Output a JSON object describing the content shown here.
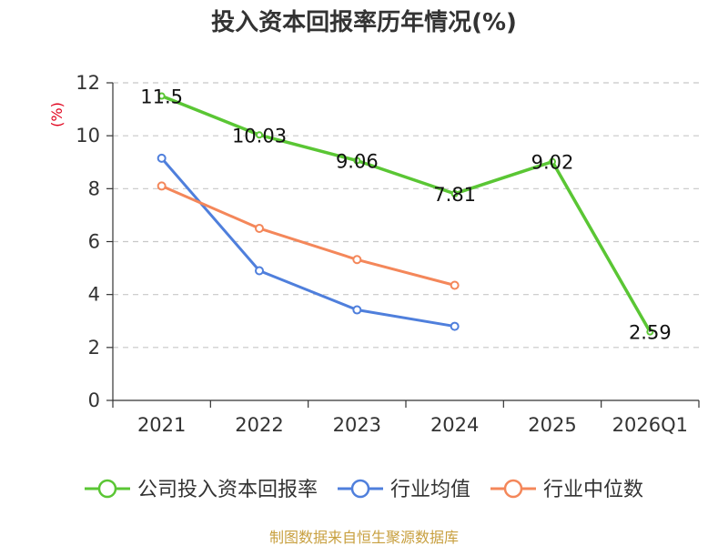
{
  "chart_data": {
    "type": "line",
    "title": "投入资本回报率历年情况(%)",
    "ylabel": "(%)",
    "xlabel": "",
    "categories": [
      "2021",
      "2022",
      "2023",
      "2024",
      "2025",
      "2026Q1"
    ],
    "ylim": [
      0,
      12
    ],
    "yticks": [
      0,
      2,
      4,
      6,
      8,
      10,
      12
    ],
    "grid": true,
    "legend_position": "bottom",
    "series": [
      {
        "name": "公司投入资本回报率",
        "color": "#5ac634",
        "values": [
          11.5,
          10.03,
          9.06,
          7.81,
          9.02,
          2.59
        ],
        "labels": [
          "11.5",
          "10.03",
          "9.06",
          "7.81",
          "9.02",
          "2.59"
        ],
        "show_labels": true
      },
      {
        "name": "行业均值",
        "color": "#4f7fdc",
        "values": [
          9.15,
          4.9,
          3.42,
          2.8,
          null,
          null
        ],
        "show_labels": false
      },
      {
        "name": "行业中位数",
        "color": "#f4875a",
        "values": [
          8.1,
          6.5,
          5.32,
          4.35,
          null,
          null
        ],
        "show_labels": false
      }
    ],
    "source": "制图数据来自恒生聚源数据库"
  }
}
